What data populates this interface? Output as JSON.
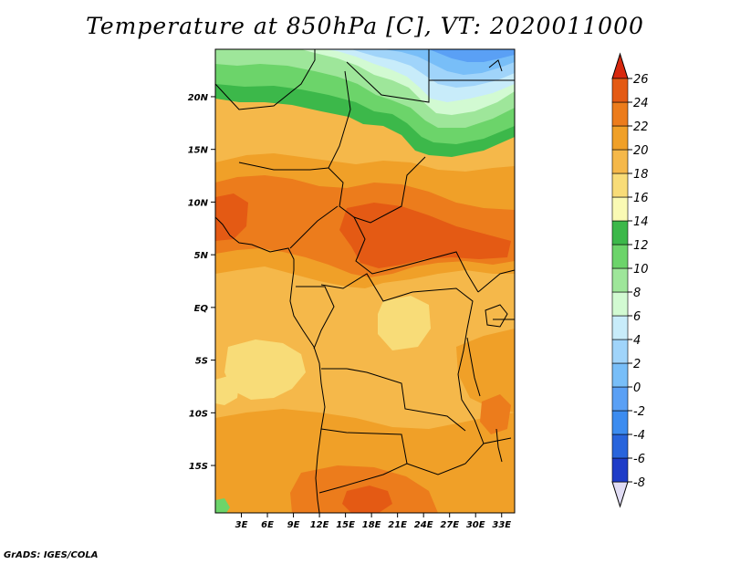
{
  "title": "Temperature at 850hPa [C], VT: 2020011000",
  "credit": "GrADS: IGES/COLA",
  "map": {
    "lon_range": [
      0,
      34.5
    ],
    "lat_range": [
      -19.5,
      24.5
    ],
    "lon_ticks": [
      {
        "value": 3,
        "label": "3E"
      },
      {
        "value": 6,
        "label": "6E"
      },
      {
        "value": 9,
        "label": "9E"
      },
      {
        "value": 12,
        "label": "12E"
      },
      {
        "value": 15,
        "label": "15E"
      },
      {
        "value": 18,
        "label": "18E"
      },
      {
        "value": 21,
        "label": "21E"
      },
      {
        "value": 24,
        "label": "24E"
      },
      {
        "value": 27,
        "label": "27E"
      },
      {
        "value": 30,
        "label": "30E"
      },
      {
        "value": 33,
        "label": "33E"
      }
    ],
    "lat_ticks": [
      {
        "value": 20,
        "label": "20N"
      },
      {
        "value": 15,
        "label": "15N"
      },
      {
        "value": 10,
        "label": "10N"
      },
      {
        "value": 5,
        "label": "5N"
      },
      {
        "value": 0,
        "label": "EQ"
      },
      {
        "value": -5,
        "label": "5S"
      },
      {
        "value": -10,
        "label": "10S"
      },
      {
        "value": -15,
        "label": "15S"
      }
    ],
    "background_level_color": "#f5b84a"
  },
  "colorbar": {
    "levels": [
      -8,
      -6,
      -4,
      -2,
      0,
      2,
      4,
      6,
      8,
      10,
      12,
      14,
      16,
      18,
      20,
      22,
      24,
      26
    ],
    "labels": [
      "-8",
      "-6",
      "-4",
      "-2",
      "0",
      "2",
      "4",
      "6",
      "8",
      "10",
      "12",
      "14",
      "16",
      "18",
      "20",
      "22",
      "24",
      "26"
    ],
    "colors": [
      "#1a0f78",
      "#1e3cc8",
      "#2864dc",
      "#3c8cf0",
      "#5aa0f5",
      "#78bef8",
      "#a0d4fa",
      "#c8ecfa",
      "#d2fad2",
      "#9ee69a",
      "#6cd46a",
      "#3cb84a",
      "#fafab4",
      "#f8dc78",
      "#f5b84a",
      "#f0a028",
      "#ec7c1c",
      "#e45a14",
      "#d7280e"
    ],
    "low_arrow_color": "#e0dcf4",
    "high_arrow_color": "#d7280e"
  }
}
